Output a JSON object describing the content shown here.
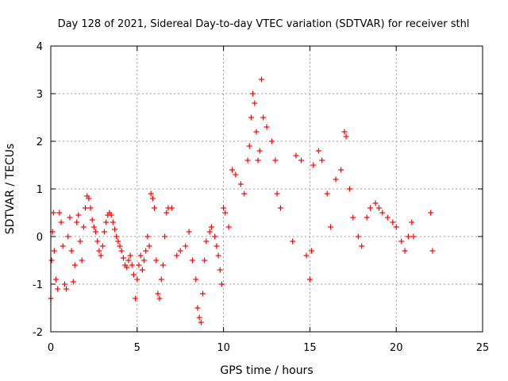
{
  "chart_data": {
    "type": "scatter",
    "title": "Day 128 of 2021, Sidereal Day-to-day VTEC variation (SDTVAR) for receiver sthl",
    "xlabel": "GPS time / hours",
    "ylabel": "SDTVAR / TECUs",
    "xlim": [
      0,
      25
    ],
    "ylim": [
      -2,
      4
    ],
    "xticks": [
      0,
      5,
      10,
      15,
      20,
      25
    ],
    "yticks": [
      -2,
      -1,
      0,
      1,
      2,
      3,
      4
    ],
    "grid": true,
    "marker": "+",
    "color": "#ff0000",
    "series": [
      {
        "name": "sthl",
        "points": [
          [
            0.0,
            -1.3
          ],
          [
            0.05,
            -0.5
          ],
          [
            0.1,
            0.1
          ],
          [
            0.15,
            0.5
          ],
          [
            0.2,
            -0.3
          ],
          [
            0.3,
            -0.9
          ],
          [
            0.4,
            -1.1
          ],
          [
            0.5,
            0.5
          ],
          [
            0.6,
            0.3
          ],
          [
            0.7,
            -0.2
          ],
          [
            0.8,
            -1.0
          ],
          [
            0.9,
            -1.1
          ],
          [
            1.0,
            0.0
          ],
          [
            1.1,
            0.4
          ],
          [
            1.2,
            -0.3
          ],
          [
            1.3,
            -0.95
          ],
          [
            1.4,
            -0.6
          ],
          [
            1.5,
            0.3
          ],
          [
            1.6,
            0.45
          ],
          [
            1.7,
            -0.1
          ],
          [
            1.8,
            -0.5
          ],
          [
            1.9,
            0.2
          ],
          [
            2.0,
            0.6
          ],
          [
            2.1,
            0.85
          ],
          [
            2.2,
            0.8
          ],
          [
            2.3,
            0.6
          ],
          [
            2.4,
            0.35
          ],
          [
            2.5,
            0.2
          ],
          [
            2.6,
            0.1
          ],
          [
            2.7,
            -0.1
          ],
          [
            2.8,
            -0.3
          ],
          [
            2.9,
            -0.4
          ],
          [
            3.0,
            -0.2
          ],
          [
            3.1,
            0.1
          ],
          [
            3.2,
            0.3
          ],
          [
            3.3,
            0.45
          ],
          [
            3.4,
            0.5
          ],
          [
            3.5,
            0.45
          ],
          [
            3.6,
            0.3
          ],
          [
            3.7,
            0.15
          ],
          [
            3.8,
            0.0
          ],
          [
            3.9,
            -0.1
          ],
          [
            4.0,
            -0.2
          ],
          [
            4.1,
            -0.3
          ],
          [
            4.2,
            -0.45
          ],
          [
            4.3,
            -0.6
          ],
          [
            4.4,
            -0.65
          ],
          [
            4.5,
            -0.5
          ],
          [
            4.6,
            -0.4
          ],
          [
            4.7,
            -0.6
          ],
          [
            4.8,
            -0.8
          ],
          [
            4.9,
            -1.3
          ],
          [
            5.0,
            -0.9
          ],
          [
            5.1,
            -0.6
          ],
          [
            5.2,
            -0.4
          ],
          [
            5.3,
            -0.7
          ],
          [
            5.4,
            -0.5
          ],
          [
            5.5,
            -0.3
          ],
          [
            5.6,
            0.0
          ],
          [
            5.7,
            -0.2
          ],
          [
            5.8,
            0.9
          ],
          [
            5.9,
            0.8
          ],
          [
            6.0,
            0.6
          ],
          [
            6.1,
            -0.5
          ],
          [
            6.2,
            -1.2
          ],
          [
            6.3,
            -1.3
          ],
          [
            6.4,
            -0.9
          ],
          [
            6.5,
            -0.6
          ],
          [
            6.6,
            0.0
          ],
          [
            6.7,
            0.5
          ],
          [
            6.8,
            0.6
          ],
          [
            7.0,
            0.6
          ],
          [
            7.3,
            -0.4
          ],
          [
            7.5,
            -0.3
          ],
          [
            7.8,
            -0.2
          ],
          [
            8.0,
            0.1
          ],
          [
            8.2,
            -0.5
          ],
          [
            8.4,
            -0.9
          ],
          [
            8.5,
            -1.5
          ],
          [
            8.6,
            -1.7
          ],
          [
            8.7,
            -1.8
          ],
          [
            8.8,
            -1.2
          ],
          [
            8.9,
            -0.5
          ],
          [
            9.0,
            -0.1
          ],
          [
            9.2,
            0.1
          ],
          [
            9.3,
            0.2
          ],
          [
            9.5,
            0.0
          ],
          [
            9.6,
            -0.2
          ],
          [
            9.7,
            -0.4
          ],
          [
            9.8,
            -0.7
          ],
          [
            9.9,
            -1.0
          ],
          [
            10.0,
            0.6
          ],
          [
            10.1,
            0.5
          ],
          [
            10.3,
            0.2
          ],
          [
            10.5,
            1.4
          ],
          [
            10.7,
            1.3
          ],
          [
            11.0,
            1.1
          ],
          [
            11.2,
            0.9
          ],
          [
            11.4,
            1.6
          ],
          [
            11.5,
            1.9
          ],
          [
            11.6,
            2.5
          ],
          [
            11.7,
            3.0
          ],
          [
            11.8,
            2.8
          ],
          [
            11.9,
            2.2
          ],
          [
            12.0,
            1.6
          ],
          [
            12.1,
            1.8
          ],
          [
            12.2,
            3.3
          ],
          [
            12.3,
            2.5
          ],
          [
            12.5,
            2.3
          ],
          [
            12.8,
            2.0
          ],
          [
            13.0,
            1.6
          ],
          [
            13.1,
            0.9
          ],
          [
            13.3,
            0.6
          ],
          [
            14.0,
            -0.1
          ],
          [
            14.2,
            1.7
          ],
          [
            14.5,
            1.6
          ],
          [
            14.8,
            -0.4
          ],
          [
            15.0,
            -0.9
          ],
          [
            15.1,
            -0.3
          ],
          [
            15.2,
            1.5
          ],
          [
            15.5,
            1.8
          ],
          [
            15.7,
            1.6
          ],
          [
            16.0,
            0.9
          ],
          [
            16.2,
            0.2
          ],
          [
            16.5,
            1.2
          ],
          [
            16.8,
            1.4
          ],
          [
            17.0,
            2.2
          ],
          [
            17.1,
            2.1
          ],
          [
            17.3,
            1.0
          ],
          [
            17.5,
            0.4
          ],
          [
            17.8,
            0.0
          ],
          [
            18.0,
            -0.2
          ],
          [
            18.3,
            0.4
          ],
          [
            18.5,
            0.6
          ],
          [
            18.8,
            0.7
          ],
          [
            19.0,
            0.6
          ],
          [
            19.2,
            0.5
          ],
          [
            19.5,
            0.4
          ],
          [
            19.8,
            0.3
          ],
          [
            20.0,
            0.2
          ],
          [
            20.3,
            -0.1
          ],
          [
            20.5,
            -0.3
          ],
          [
            20.7,
            0.0
          ],
          [
            20.9,
            0.3
          ],
          [
            21.0,
            0.0
          ],
          [
            22.0,
            0.5
          ],
          [
            22.1,
            -0.3
          ]
        ]
      }
    ]
  }
}
